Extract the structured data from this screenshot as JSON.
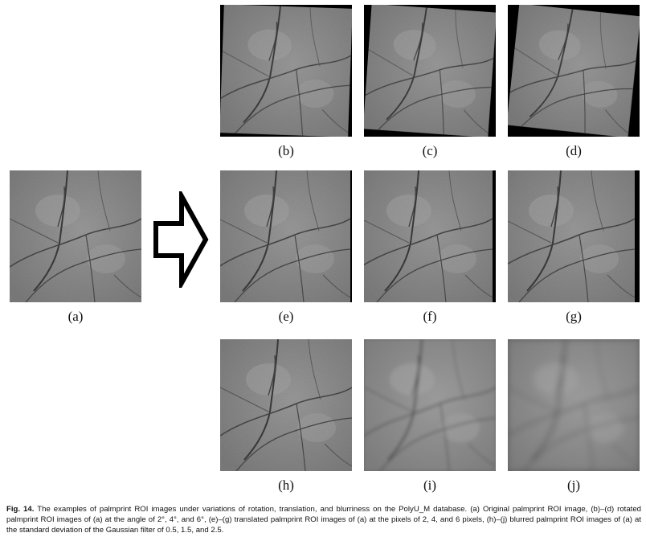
{
  "panels": {
    "a": {
      "label": "(a)"
    },
    "b": {
      "label": "(b)"
    },
    "c": {
      "label": "(c)"
    },
    "d": {
      "label": "(d)"
    },
    "e": {
      "label": "(e)"
    },
    "f": {
      "label": "(f)"
    },
    "g": {
      "label": "(g)"
    },
    "h": {
      "label": "(h)"
    },
    "i": {
      "label": "(i)"
    },
    "j": {
      "label": "(j)"
    }
  },
  "caption": {
    "fig_label": "Fig. 14.",
    "text": "The examples of palmprint ROI images under variations of rotation, translation, and blurriness on the PolyU_M database. (a) Original palmprint ROI image, (b)–(d) rotated palmprint ROI images of (a) at the angle of 2°, 4°, and 6°, (e)–(g) translated palmprint ROI images of (a) at the pixels of 2, 4, and 6 pixels, (h)–(j) blurred palmprint ROI images of (a) at the standard deviation of the Gaussian filter of 0.5, 1.5, and 2.5."
  },
  "colors": {
    "palm_gray": "#8c8c8c",
    "crease": "#3a3a3a",
    "border": "#000000"
  }
}
